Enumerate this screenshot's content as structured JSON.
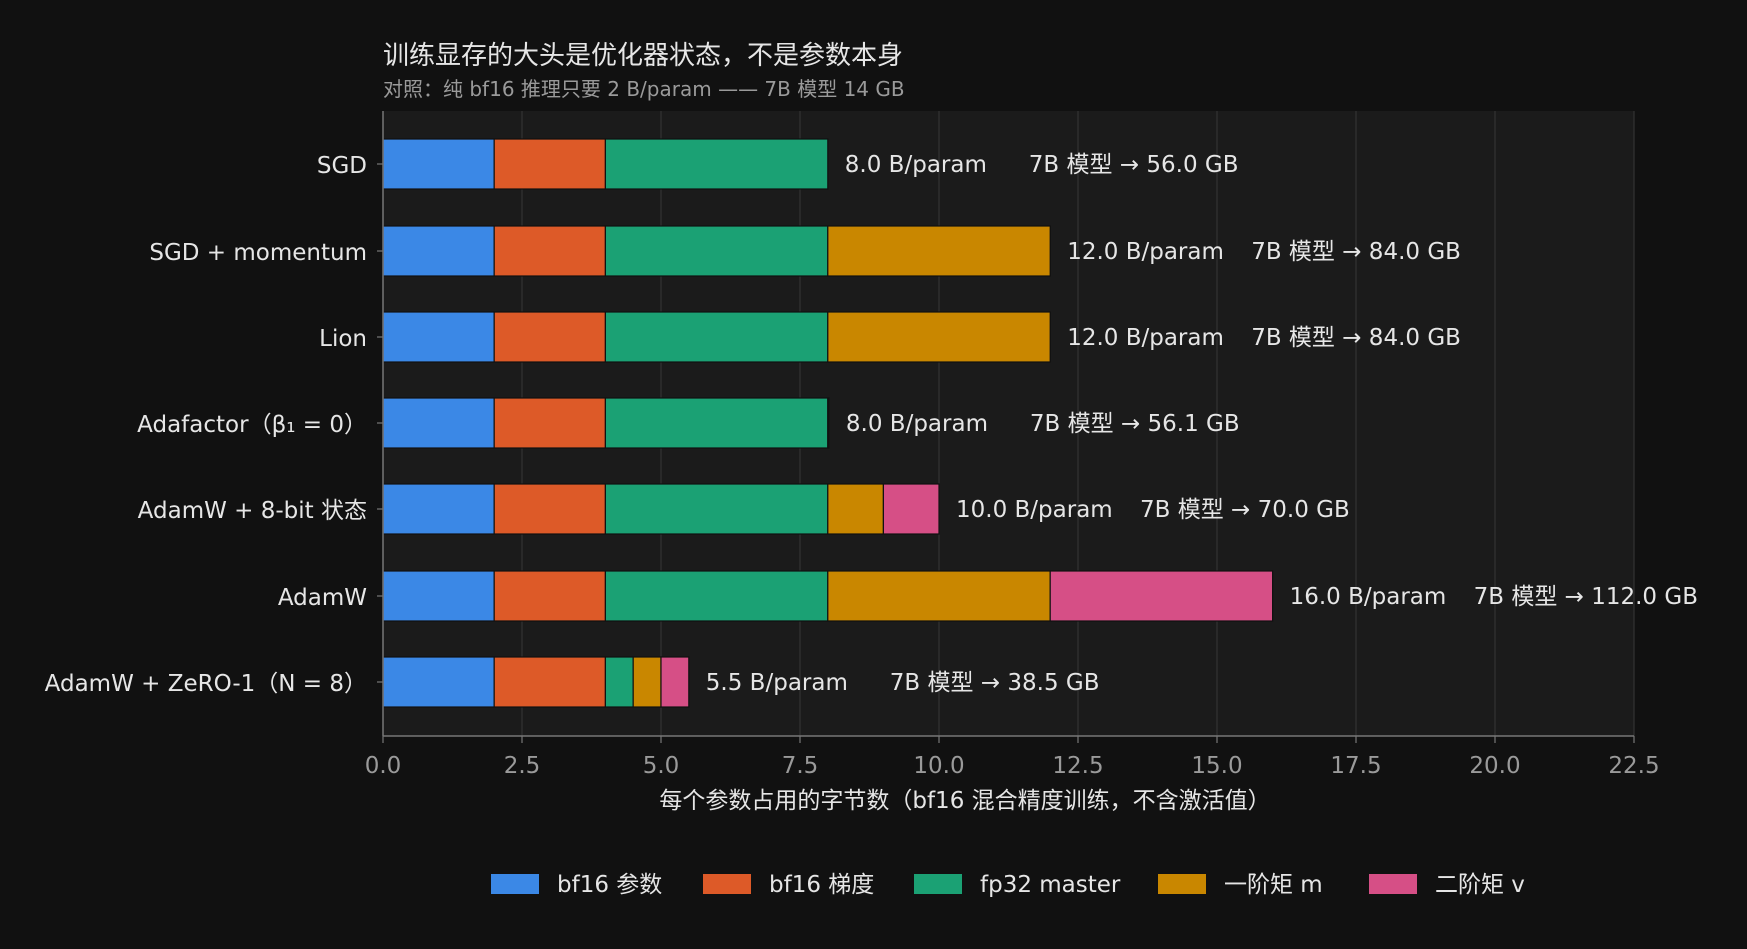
{
  "chart_data": {
    "type": "bar",
    "orientation": "horizontal",
    "stacked": true,
    "title": "训练显存的大头是优化器状态，不是参数本身",
    "subtitle": "对照：纯 bf16 推理只要 2 B/param —— 7B 模型 14 GB",
    "xlabel": "每个参数占用的字节数（bf16 混合精度训练，不含激活值）",
    "ylabel": "",
    "xlim": [
      0,
      22.5
    ],
    "xticks": [
      0,
      2.5,
      5,
      7.5,
      10,
      12.5,
      15,
      17.5,
      20,
      22.5
    ],
    "xtick_labels": [
      "0.0",
      "2.5",
      "5.0",
      "7.5",
      "10.0",
      "12.5",
      "15.0",
      "17.5",
      "20.0",
      "22.5"
    ],
    "grid": "vertical",
    "legend_position": "bottom-center",
    "categories": [
      "SGD",
      "SGD + momentum",
      "Lion",
      "Adafactor（β₁ = 0）",
      "AdamW + 8-bit 状态",
      "AdamW",
      "AdamW + ZeRO-1（N = 8）"
    ],
    "series": [
      {
        "name": "bf16 参数",
        "color": "#3b88e6",
        "values": [
          2,
          2,
          2,
          2,
          2,
          2,
          2
        ]
      },
      {
        "name": "bf16 梯度",
        "color": "#dd5a28",
        "values": [
          2,
          2,
          2,
          2,
          2,
          2,
          2
        ]
      },
      {
        "name": "fp32 master",
        "color": "#1ba174",
        "values": [
          4,
          4,
          4,
          4,
          4,
          4,
          0.5
        ]
      },
      {
        "name": "一阶矩 m",
        "color": "#c98700",
        "values": [
          0,
          4,
          4,
          0,
          1,
          4,
          0.5
        ]
      },
      {
        "name": "二阶矩 v",
        "color": "#d64f86",
        "values": [
          0,
          0,
          0,
          0.02,
          1,
          4,
          0.5
        ]
      }
    ],
    "totals_labels": [
      "8.0 B/param",
      "12.0 B/param",
      "12.0 B/param",
      "8.0 B/param",
      "10.0 B/param",
      "16.0 B/param",
      "5.5 B/param"
    ],
    "model_labels": [
      "7B 模型 → 56.0 GB",
      "7B 模型 → 84.0 GB",
      "7B 模型 → 84.0 GB",
      "7B 模型 → 56.1 GB",
      "7B 模型 → 70.0 GB",
      "7B 模型 → 112.0 GB",
      "7B 模型 → 38.5 GB"
    ]
  },
  "colors": {
    "background": "#111111",
    "plot_background": "#1b1b1b",
    "text": "#e6e6e6",
    "muted_text": "#9a9a9a",
    "grid": "#333333"
  }
}
